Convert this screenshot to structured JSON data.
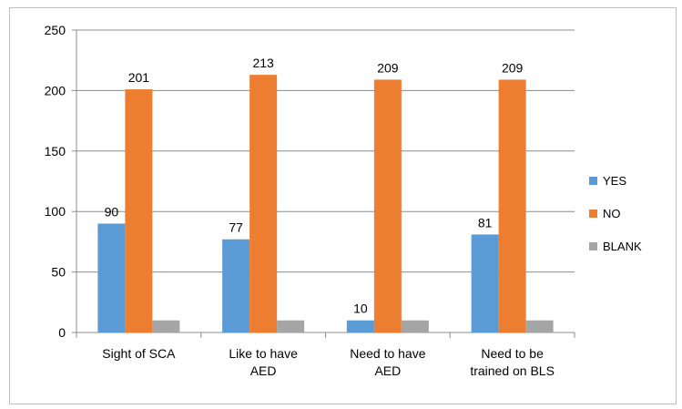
{
  "chart_data": {
    "type": "bar",
    "categories": [
      [
        "Sight of SCA"
      ],
      [
        "Like to have",
        "AED"
      ],
      [
        "Need to have",
        "AED"
      ],
      [
        "Need to be",
        "trained on BLS"
      ]
    ],
    "series": [
      {
        "name": "YES",
        "values": [
          90,
          77,
          10,
          81
        ],
        "color": "#5b9bd5",
        "data_labels": [
          "90",
          "77",
          "10",
          "81"
        ]
      },
      {
        "name": "NO",
        "values": [
          201,
          213,
          209,
          209
        ],
        "color": "#ed7d31",
        "data_labels": [
          "201",
          "213",
          "209",
          "209"
        ]
      },
      {
        "name": "BLANK",
        "values": [
          10,
          10,
          10,
          10
        ],
        "color": "#a5a5a5",
        "data_labels": []
      }
    ],
    "yticks": [
      "0",
      "50",
      "100",
      "150",
      "200",
      "250"
    ],
    "ylim": [
      0,
      250
    ],
    "grid": true,
    "legend": "right"
  }
}
